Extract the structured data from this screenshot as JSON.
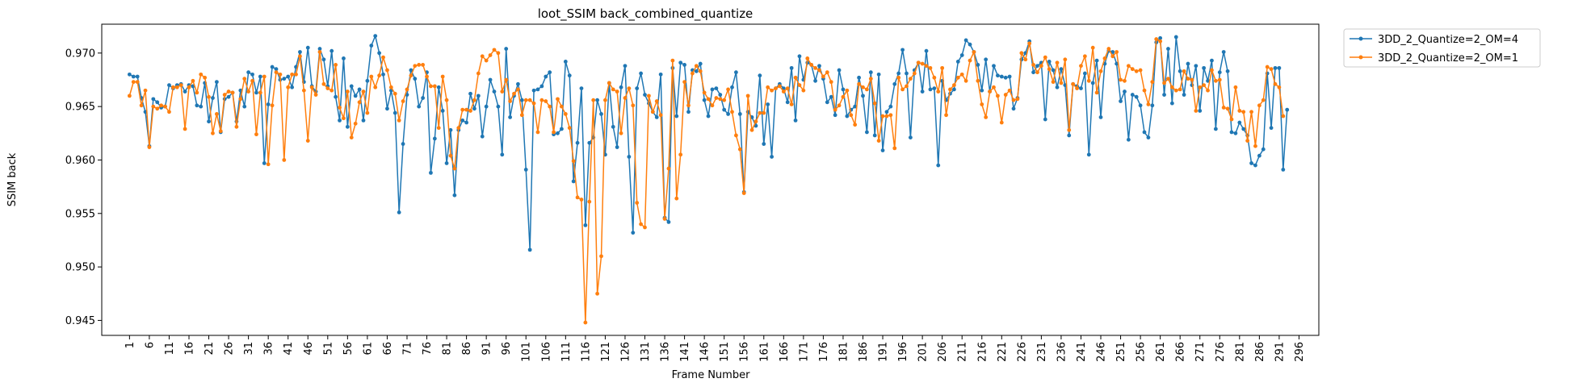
{
  "chart_data": {
    "type": "line",
    "title": "loot_SSIM back_combined_quantize",
    "xlabel": "Frame Number",
    "ylabel": "SSIM back",
    "xlim": [
      -6,
      301
    ],
    "ylim": [
      0.9436,
      0.9727
    ],
    "x_ticks": [
      1,
      6,
      11,
      16,
      21,
      26,
      31,
      36,
      41,
      46,
      51,
      56,
      61,
      66,
      71,
      76,
      81,
      86,
      91,
      96,
      101,
      106,
      111,
      116,
      121,
      126,
      131,
      136,
      141,
      146,
      151,
      156,
      161,
      166,
      171,
      176,
      181,
      186,
      191,
      196,
      201,
      206,
      211,
      216,
      221,
      226,
      231,
      236,
      241,
      246,
      251,
      256,
      261,
      266,
      271,
      276,
      281,
      286,
      291,
      296
    ],
    "y_ticks": [
      0.945,
      0.95,
      0.955,
      0.96,
      0.965,
      0.97
    ],
    "y_tick_labels": [
      "0.945",
      "0.950",
      "0.955",
      "0.960",
      "0.965",
      "0.970"
    ],
    "grid": false,
    "legend_position": "outside-top-right",
    "x_start": 1,
    "series": [
      {
        "name": "3DD_2_Quantize=2_OM=4",
        "color": "#1f77b4",
        "values": [
          0.968,
          0.9678,
          0.9678,
          0.9658,
          0.9645,
          0.9613,
          0.9657,
          0.9654,
          0.9649,
          0.965,
          0.967,
          0.9667,
          0.967,
          0.9671,
          0.9664,
          0.967,
          0.9669,
          0.9651,
          0.965,
          0.9672,
          0.9636,
          0.9658,
          0.9673,
          0.9626,
          0.9657,
          0.9659,
          0.9663,
          0.9636,
          0.9665,
          0.965,
          0.9682,
          0.968,
          0.9663,
          0.9678,
          0.9597,
          0.9652,
          0.9687,
          0.9685,
          0.9675,
          0.9676,
          0.9678,
          0.9668,
          0.9687,
          0.9701,
          0.9673,
          0.9705,
          0.9669,
          0.9664,
          0.9704,
          0.9694,
          0.9669,
          0.9702,
          0.9659,
          0.9637,
          0.9695,
          0.9631,
          0.9669,
          0.966,
          0.9666,
          0.9637,
          0.9674,
          0.9707,
          0.9716,
          0.97,
          0.968,
          0.9648,
          0.9665,
          0.9644,
          0.9551,
          0.9615,
          0.9661,
          0.9684,
          0.9676,
          0.965,
          0.9658,
          0.9682,
          0.9588,
          0.962,
          0.9668,
          0.9646,
          0.9597,
          0.9628,
          0.9567,
          0.9628,
          0.9637,
          0.9635,
          0.9662,
          0.9648,
          0.966,
          0.9622,
          0.965,
          0.9675,
          0.9664,
          0.965,
          0.9605,
          0.9704,
          0.964,
          0.966,
          0.9671,
          0.9656,
          0.9591,
          0.9516,
          0.9665,
          0.9666,
          0.9669,
          0.9678,
          0.9682,
          0.9624,
          0.9625,
          0.9629,
          0.9692,
          0.9679,
          0.958,
          0.9616,
          0.9667,
          0.9539,
          0.9616,
          0.9621,
          0.9656,
          0.9643,
          0.9605,
          0.9672,
          0.9631,
          0.9612,
          0.9668,
          0.9688,
          0.9603,
          0.9532,
          0.9667,
          0.9681,
          0.9661,
          0.9653,
          0.9645,
          0.964,
          0.968,
          0.9546,
          0.9542,
          0.9686,
          0.9641,
          0.9691,
          0.9689,
          0.9645,
          0.9684,
          0.9683,
          0.969,
          0.9656,
          0.9641,
          0.9666,
          0.9667,
          0.9661,
          0.9647,
          0.9643,
          0.9668,
          0.9682,
          0.9643,
          0.957,
          0.9645,
          0.964,
          0.9632,
          0.9679,
          0.9615,
          0.9652,
          0.9603,
          0.9667,
          0.9671,
          0.9667,
          0.9654,
          0.9686,
          0.9637,
          0.9697,
          0.9675,
          0.9691,
          0.9689,
          0.9674,
          0.9688,
          0.9676,
          0.9654,
          0.9659,
          0.9642,
          0.9684,
          0.9666,
          0.9641,
          0.9647,
          0.965,
          0.9677,
          0.966,
          0.9626,
          0.9682,
          0.9623,
          0.968,
          0.9609,
          0.9645,
          0.965,
          0.9671,
          0.9681,
          0.9703,
          0.9681,
          0.9621,
          0.9684,
          0.9691,
          0.9664,
          0.9702,
          0.9666,
          0.9667,
          0.9595,
          0.9674,
          0.9656,
          0.9662,
          0.9666,
          0.9692,
          0.9698,
          0.9712,
          0.9708,
          0.9701,
          0.9689,
          0.9665,
          0.9694,
          0.9664,
          0.9688,
          0.9679,
          0.9678,
          0.9677,
          0.9678,
          0.9648,
          0.9658,
          0.9694,
          0.97,
          0.9711,
          0.9682,
          0.9688,
          0.9691,
          0.9638,
          0.9692,
          0.9684,
          0.9668,
          0.9685,
          0.967,
          0.9623,
          0.9671,
          0.9669,
          0.9667,
          0.9681,
          0.9605,
          0.9672,
          0.9693,
          0.964,
          0.969,
          0.9702,
          0.9701,
          0.969,
          0.9655,
          0.9664,
          0.9619,
          0.9661,
          0.9659,
          0.9651,
          0.9626,
          0.9621,
          0.9651,
          0.971,
          0.9714,
          0.9661,
          0.9704,
          0.9653,
          0.9715,
          0.9683,
          0.9661,
          0.969,
          0.967,
          0.9688,
          0.9646,
          0.9686,
          0.9674,
          0.9693,
          0.9629,
          0.9682,
          0.9701,
          0.9683,
          0.9626,
          0.9625,
          0.9635,
          0.9629,
          0.9623,
          0.9597,
          0.9595,
          0.9604,
          0.961,
          0.9681,
          0.963,
          0.9686,
          0.9686,
          0.9591,
          0.9647
        ]
      },
      {
        "name": "3DD_2_Quantize=2_OM=1",
        "color": "#ff7f0e",
        "values": [
          0.966,
          0.9673,
          0.9673,
          0.9651,
          0.9665,
          0.9612,
          0.965,
          0.9648,
          0.9651,
          0.965,
          0.9645,
          0.9668,
          0.9668,
          0.967,
          0.9629,
          0.9668,
          0.9674,
          0.9663,
          0.968,
          0.9677,
          0.9659,
          0.9625,
          0.9643,
          0.9627,
          0.9661,
          0.9664,
          0.9663,
          0.9631,
          0.9657,
          0.9676,
          0.9664,
          0.9674,
          0.9624,
          0.9663,
          0.9678,
          0.9596,
          0.9651,
          0.9682,
          0.968,
          0.96,
          0.9668,
          0.968,
          0.968,
          0.9697,
          0.9665,
          0.9618,
          0.9668,
          0.9661,
          0.9701,
          0.9671,
          0.9667,
          0.9665,
          0.9689,
          0.9649,
          0.9639,
          0.9664,
          0.9621,
          0.9634,
          0.9654,
          0.9664,
          0.9644,
          0.9678,
          0.9668,
          0.9679,
          0.9696,
          0.9684,
          0.9668,
          0.9662,
          0.9637,
          0.9655,
          0.9666,
          0.9679,
          0.9688,
          0.9689,
          0.9689,
          0.9678,
          0.9669,
          0.9669,
          0.963,
          0.9678,
          0.9656,
          0.9604,
          0.9592,
          0.963,
          0.9647,
          0.9647,
          0.9646,
          0.9656,
          0.9681,
          0.9697,
          0.9693,
          0.9698,
          0.9703,
          0.97,
          0.9664,
          0.9675,
          0.9655,
          0.9662,
          0.9666,
          0.9642,
          0.9656,
          0.9656,
          0.9653,
          0.9626,
          0.9656,
          0.9655,
          0.965,
          0.9626,
          0.9657,
          0.965,
          0.9643,
          0.963,
          0.9599,
          0.9565,
          0.9563,
          0.9448,
          0.9561,
          0.9656,
          0.9475,
          0.951,
          0.9656,
          0.9672,
          0.9666,
          0.9664,
          0.9625,
          0.9658,
          0.9667,
          0.9651,
          0.956,
          0.954,
          0.9537,
          0.966,
          0.9645,
          0.9655,
          0.9642,
          0.9545,
          0.9592,
          0.9693,
          0.9564,
          0.9605,
          0.9673,
          0.9651,
          0.9681,
          0.9688,
          0.9683,
          0.9663,
          0.9657,
          0.9651,
          0.9658,
          0.9657,
          0.9656,
          0.9666,
          0.9645,
          0.9623,
          0.961,
          0.9569,
          0.966,
          0.9628,
          0.9636,
          0.9644,
          0.9644,
          0.9668,
          0.9665,
          0.9667,
          0.9669,
          0.9664,
          0.9667,
          0.9652,
          0.9677,
          0.967,
          0.9665,
          0.9695,
          0.9689,
          0.9686,
          0.9684,
          0.9678,
          0.9682,
          0.9673,
          0.9647,
          0.9651,
          0.9659,
          0.9665,
          0.9642,
          0.9633,
          0.9671,
          0.9668,
          0.9666,
          0.9676,
          0.9653,
          0.9618,
          0.9641,
          0.9641,
          0.9642,
          0.9611,
          0.9677,
          0.9666,
          0.9669,
          0.9676,
          0.9681,
          0.9691,
          0.969,
          0.9688,
          0.9686,
          0.9677,
          0.9664,
          0.9686,
          0.9642,
          0.9666,
          0.967,
          0.9677,
          0.968,
          0.9674,
          0.9693,
          0.9701,
          0.9674,
          0.9652,
          0.964,
          0.9664,
          0.9668,
          0.966,
          0.9635,
          0.9661,
          0.9665,
          0.9656,
          0.9657,
          0.97,
          0.9694,
          0.9709,
          0.9689,
          0.9682,
          0.9688,
          0.9696,
          0.9685,
          0.9673,
          0.9691,
          0.9672,
          0.9694,
          0.9628,
          0.9671,
          0.9667,
          0.9688,
          0.9697,
          0.9674,
          0.9705,
          0.9663,
          0.9683,
          0.9695,
          0.9704,
          0.9697,
          0.9701,
          0.9675,
          0.9674,
          0.9688,
          0.9685,
          0.9683,
          0.9684,
          0.9665,
          0.9652,
          0.9673,
          0.9713,
          0.9711,
          0.9672,
          0.9676,
          0.9668,
          0.9665,
          0.9666,
          0.9683,
          0.9676,
          0.9675,
          0.9646,
          0.9668,
          0.967,
          0.9665,
          0.9684,
          0.9674,
          0.9675,
          0.9649,
          0.9648,
          0.9638,
          0.9668,
          0.9646,
          0.9645,
          0.9618,
          0.9645,
          0.9613,
          0.9651,
          0.9656,
          0.9687,
          0.9685,
          0.9671,
          0.9668,
          0.9641
        ]
      }
    ]
  }
}
